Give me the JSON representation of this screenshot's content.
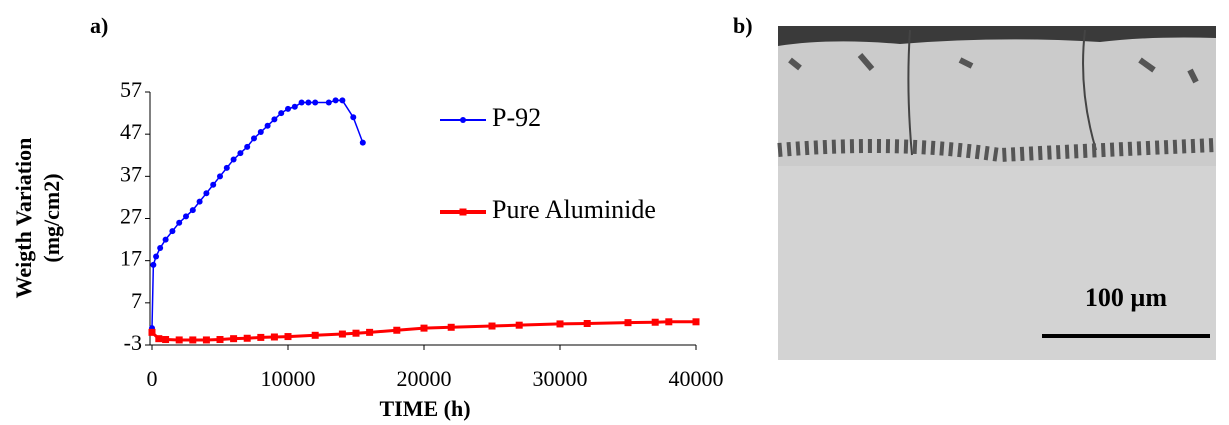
{
  "chart_data": {
    "type": "line",
    "x_label": "TIME (h)",
    "y_label": [
      "Weigth Variation",
      "(mg/cm2)"
    ],
    "xlim": [
      0,
      40000
    ],
    "xticks": [
      0,
      10000,
      20000,
      30000,
      40000
    ],
    "ylim": [
      -3,
      57
    ],
    "yticks": [
      -3,
      7,
      17,
      27,
      37,
      47,
      57
    ],
    "legend": "right",
    "series": [
      {
        "name": "P-92",
        "color": "#0000ff",
        "marker": "circle",
        "x": [
          0,
          100,
          300,
          600,
          1000,
          1500,
          2000,
          2500,
          3000,
          3500,
          4000,
          4500,
          5000,
          5500,
          6000,
          6500,
          7000,
          7500,
          8000,
          8500,
          9000,
          9500,
          10000,
          10500,
          11000,
          11500,
          12000,
          13000,
          13500,
          14000,
          14800,
          15500
        ],
        "values": [
          1,
          16,
          18,
          20,
          22,
          24,
          26,
          27.5,
          29,
          31,
          33,
          35,
          37,
          39,
          41,
          42.5,
          44,
          46,
          47.5,
          49,
          50.5,
          52,
          53,
          53.5,
          54.5,
          54.5,
          54.5,
          54.5,
          55,
          55,
          51,
          45
        ]
      },
      {
        "name": "Pure Aluminide",
        "color": "#ff0000",
        "marker": "square",
        "x": [
          0,
          500,
          1000,
          2000,
          3000,
          4000,
          5000,
          6000,
          7000,
          8000,
          9000,
          10000,
          12000,
          14000,
          15000,
          16000,
          18000,
          20000,
          22000,
          25000,
          27000,
          30000,
          32000,
          35000,
          37000,
          38000,
          40000
        ],
        "values": [
          0,
          -1.5,
          -1.7,
          -1.8,
          -1.8,
          -1.8,
          -1.7,
          -1.5,
          -1.4,
          -1.2,
          -1.1,
          -1,
          -0.7,
          -0.4,
          -0.2,
          0,
          0.5,
          1,
          1.2,
          1.5,
          1.7,
          2,
          2.1,
          2.3,
          2.4,
          2.5,
          2.5
        ]
      }
    ]
  },
  "panel_labels": [
    "a)",
    "b)"
  ],
  "micrograph": {
    "scale_bar_label": "100 µm"
  }
}
